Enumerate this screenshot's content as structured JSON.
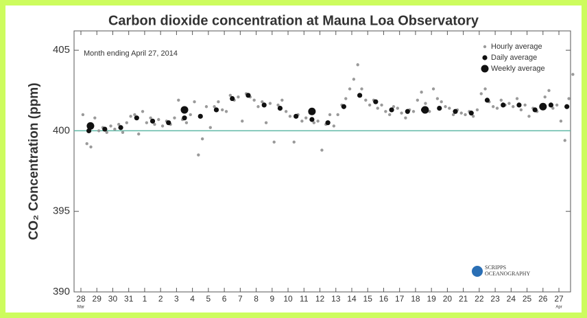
{
  "chart_data": {
    "type": "scatter",
    "title": "Carbon dioxide concentration at Mauna Loa Observatory",
    "annotation": "Month ending April 27, 2014",
    "ylabel": "CO₂ Concentration (ppm)",
    "logo": [
      "SCRIPPS",
      "OCEANOGRAPHY"
    ],
    "month_labels": [
      "Mar",
      "Apr"
    ],
    "legend": "upper right",
    "reference_line": {
      "value": 400,
      "color": "#5fb8a6"
    },
    "xlim": [
      -0.43,
      30.73
    ],
    "ylim": [
      390,
      406.2
    ],
    "yticks": [
      390,
      395,
      400,
      405
    ],
    "xticks": [
      {
        "value": 0,
        "label": "28"
      },
      {
        "value": 1,
        "label": "29"
      },
      {
        "value": 2,
        "label": "30"
      },
      {
        "value": 3,
        "label": "31"
      },
      {
        "value": 4,
        "label": "1"
      },
      {
        "value": 5,
        "label": "2"
      },
      {
        "value": 6,
        "label": "3"
      },
      {
        "value": 7,
        "label": "4"
      },
      {
        "value": 8,
        "label": "5"
      },
      {
        "value": 9,
        "label": "6"
      },
      {
        "value": 10,
        "label": "7"
      },
      {
        "value": 11,
        "label": "8"
      },
      {
        "value": 12,
        "label": "9"
      },
      {
        "value": 13,
        "label": "10"
      },
      {
        "value": 14,
        "label": "11"
      },
      {
        "value": 15,
        "label": "12"
      },
      {
        "value": 16,
        "label": "13"
      },
      {
        "value": 17,
        "label": "14"
      },
      {
        "value": 18,
        "label": "15"
      },
      {
        "value": 19,
        "label": "16"
      },
      {
        "value": 20,
        "label": "17"
      },
      {
        "value": 21,
        "label": "18"
      },
      {
        "value": 22,
        "label": "19"
      },
      {
        "value": 23,
        "label": "20"
      },
      {
        "value": 24,
        "label": "21"
      },
      {
        "value": 25,
        "label": "22"
      },
      {
        "value": 26,
        "label": "23"
      },
      {
        "value": 27,
        "label": "24"
      },
      {
        "value": 28,
        "label": "25"
      },
      {
        "value": 29,
        "label": "26"
      },
      {
        "value": 30,
        "label": "27"
      }
    ],
    "series": [
      {
        "name": "Hourly average",
        "color": "#9a9a9a",
        "size": 2.2,
        "x": [
          0.125,
          0.375,
          0.625,
          0.875,
          1.125,
          1.375,
          1.625,
          1.875,
          2.125,
          2.375,
          2.625,
          2.875,
          3.125,
          3.375,
          3.625,
          3.875,
          4.125,
          4.375,
          4.625,
          4.875,
          5.125,
          5.375,
          5.625,
          5.875,
          6.125,
          6.375,
          6.625,
          6.875,
          7.125,
          7.375,
          7.625,
          7.875,
          8.125,
          8.375,
          8.625,
          8.875,
          9.125,
          9.375,
          9.625,
          9.875,
          10.125,
          10.375,
          10.625,
          10.875,
          11.125,
          11.375,
          11.625,
          11.875,
          12.125,
          12.375,
          12.625,
          12.875,
          13.125,
          13.375,
          13.625,
          13.875,
          14.125,
          14.375,
          14.625,
          14.875,
          15.125,
          15.375,
          15.625,
          15.875,
          16.125,
          16.375,
          16.625,
          16.875,
          17.125,
          17.375,
          17.625,
          17.875,
          18.125,
          18.375,
          18.625,
          18.875,
          19.125,
          19.375,
          19.625,
          19.875,
          20.125,
          20.375,
          20.625,
          20.875,
          21.125,
          21.375,
          21.625,
          21.875,
          22.125,
          22.375,
          22.625,
          22.875,
          23.125,
          23.375,
          23.625,
          23.875,
          24.125,
          24.375,
          24.625,
          24.875,
          25.125,
          25.375,
          25.625,
          25.875,
          26.125,
          26.375,
          26.625,
          26.875,
          27.125,
          27.375,
          27.625,
          27.875,
          28.125,
          28.375,
          28.625,
          28.875,
          29.125,
          29.375,
          29.625,
          29.875,
          30.125,
          30.375,
          30.625,
          30.875
        ],
        "values": [
          401.0,
          399.2,
          399.0,
          400.8,
          400.0,
          400.2,
          399.9,
          400.3,
          400.1,
          400.4,
          399.9,
          400.5,
          400.9,
          401.0,
          399.8,
          401.2,
          400.5,
          400.8,
          400.4,
          400.7,
          400.3,
          400.6,
          400.4,
          400.8,
          401.9,
          400.7,
          400.5,
          401.0,
          401.8,
          398.5,
          399.5,
          401.5,
          400.2,
          401.5,
          401.8,
          401.3,
          401.2,
          402.2,
          401.9,
          402.1,
          400.6,
          402.3,
          402.1,
          401.9,
          401.5,
          401.8,
          400.5,
          401.7,
          399.3,
          401.6,
          401.9,
          401.2,
          400.9,
          399.3,
          401.0,
          400.6,
          400.8,
          401.1,
          400.5,
          400.6,
          398.8,
          400.4,
          401.0,
          400.3,
          401.0,
          401.6,
          402.0,
          402.6,
          403.2,
          404.1,
          402.6,
          401.9,
          401.6,
          401.9,
          401.4,
          401.6,
          401.2,
          401.0,
          401.5,
          401.4,
          401.1,
          400.8,
          401.3,
          401.2,
          401.9,
          402.4,
          401.7,
          401.2,
          402.6,
          402.0,
          401.8,
          401.5,
          401.4,
          401.0,
          401.3,
          401.1,
          401.0,
          401.2,
          400.9,
          401.3,
          402.3,
          402.6,
          401.8,
          401.5,
          401.4,
          401.9,
          401.6,
          401.7,
          401.5,
          402.0,
          401.3,
          401.6,
          400.9,
          401.4,
          401.2,
          401.5,
          402.1,
          402.5,
          401.4,
          401.6,
          400.6,
          399.4,
          402.0,
          403.5
        ]
      },
      {
        "name": "Daily average",
        "color": "#111111",
        "size": 3.6,
        "x": [
          0.5,
          1.5,
          2.5,
          3.5,
          4.5,
          5.5,
          6.5,
          7.5,
          8.5,
          9.5,
          10.5,
          11.5,
          12.5,
          13.5,
          14.5,
          15.5,
          16.5,
          17.5,
          18.5,
          19.5,
          20.5,
          21.5,
          22.5,
          23.5,
          24.5,
          25.5,
          26.5,
          27.5,
          28.5,
          29.5,
          30.5
        ],
        "values": [
          400.0,
          400.1,
          400.2,
          400.8,
          400.6,
          400.5,
          400.8,
          400.9,
          401.3,
          402.0,
          402.2,
          401.6,
          401.4,
          400.9,
          400.7,
          400.5,
          401.5,
          402.2,
          401.8,
          401.3,
          401.2,
          401.3,
          401.4,
          401.2,
          401.1,
          401.9,
          401.6,
          401.6,
          401.3,
          401.6,
          401.5
        ]
      },
      {
        "name": "Weekly average",
        "color": "#111111",
        "size": 5.5,
        "x": [
          0.6,
          6.5,
          14.5,
          21.6,
          29.0
        ],
        "values": [
          400.3,
          401.3,
          401.2,
          401.3,
          401.5
        ]
      }
    ]
  }
}
